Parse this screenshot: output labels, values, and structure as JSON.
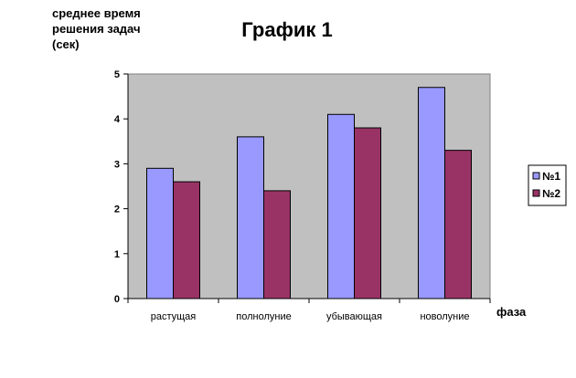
{
  "chart_data": {
    "type": "bar",
    "title": "График 1",
    "ylabel_lines": [
      "среднее время",
      "решения задач",
      "(сек)"
    ],
    "xlabel": "фаза",
    "categories": [
      "растущая",
      "полнолуние",
      "убывающая",
      "новолуние"
    ],
    "series": [
      {
        "name": "№1",
        "values": [
          2.9,
          3.6,
          4.1,
          4.7
        ],
        "color": "#9999ff"
      },
      {
        "name": "№2",
        "values": [
          2.6,
          2.4,
          3.8,
          3.3
        ],
        "color": "#993366"
      }
    ],
    "ylim": [
      0,
      5
    ],
    "yticks": [
      "0",
      "1",
      "2",
      "3",
      "4",
      "5"
    ],
    "plot_background": "#c0c0c0",
    "grid": false,
    "legend": "right"
  }
}
